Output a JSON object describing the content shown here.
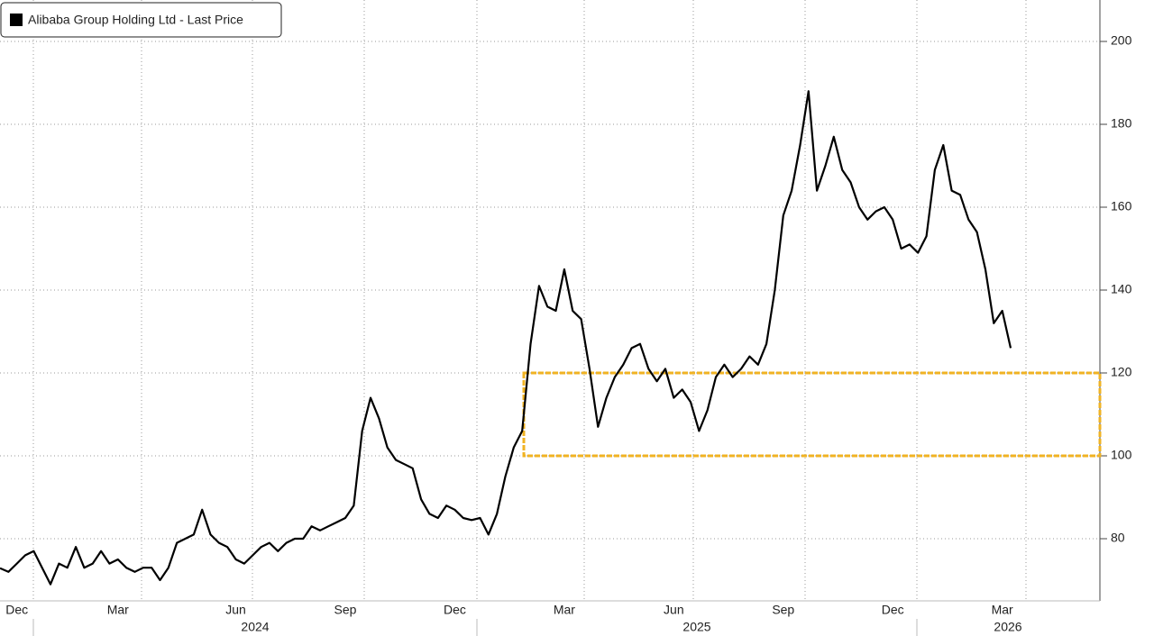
{
  "chart_data": {
    "type": "line",
    "categories": [
      null,
      null,
      "Dec",
      null,
      null,
      null,
      null,
      null,
      null,
      null,
      null,
      null,
      null,
      null,
      "Mar",
      null,
      null,
      null,
      null,
      null,
      null,
      null,
      null,
      null,
      null,
      null,
      null,
      null,
      "Jun",
      null,
      null,
      null,
      null,
      null,
      null,
      null,
      null,
      null,
      null,
      null,
      null,
      "Sep",
      null,
      null,
      null,
      null,
      null,
      null,
      null,
      null,
      null,
      null,
      null,
      null,
      "Dec",
      null,
      null,
      null,
      null,
      null,
      null,
      null,
      null,
      null,
      null,
      null,
      null,
      "Mar",
      null,
      null,
      null,
      null,
      null,
      null,
      null,
      null,
      null,
      null,
      null,
      null,
      "Jun",
      null,
      null,
      null,
      null,
      null,
      null,
      null,
      null,
      null,
      null,
      null,
      null,
      "Sep",
      null,
      null,
      null,
      null,
      null,
      null,
      null,
      null,
      null,
      null,
      null,
      null,
      "Dec",
      null,
      null,
      null,
      null,
      null,
      null,
      null,
      null,
      null,
      null,
      null,
      null,
      "Mar",
      null
    ],
    "years": [
      "2024",
      "2025",
      "2026"
    ],
    "series": [
      {
        "name": "Alibaba Group Holding Ltd - Last Price",
        "color": "#000000",
        "values": [
          72.9,
          72,
          74,
          76,
          77,
          73,
          69,
          74,
          73,
          78,
          73,
          74,
          77,
          74,
          75,
          73,
          72,
          73,
          73,
          70,
          73,
          79,
          80,
          81,
          87,
          81,
          79,
          78,
          75,
          74,
          76,
          78,
          79,
          77,
          79,
          80,
          80,
          83,
          82,
          83,
          84,
          85,
          88,
          106,
          114,
          109,
          102,
          99,
          98,
          97,
          89.5,
          86,
          85,
          88,
          87,
          85,
          84.5,
          85,
          81,
          86,
          95,
          102,
          106,
          127,
          141,
          136,
          135,
          145,
          135,
          133,
          121,
          107,
          114,
          119,
          122,
          126,
          127,
          121,
          118,
          121,
          114,
          116,
          113,
          106,
          111,
          119,
          122,
          119,
          121,
          124,
          122,
          127,
          140,
          158,
          164,
          175,
          188,
          164,
          170,
          177,
          169,
          166,
          160,
          157,
          159,
          160,
          157,
          150,
          151,
          149,
          153,
          169,
          175,
          164,
          163,
          157,
          154,
          145,
          132,
          135,
          126
        ]
      }
    ],
    "ylim": [
      65,
      210
    ],
    "yticks": [
      80,
      100,
      120,
      140,
      160,
      180,
      200
    ],
    "grid": true,
    "highlight": {
      "ylim": [
        100,
        120
      ],
      "color": "#f0b323"
    },
    "legend": "top-left"
  }
}
